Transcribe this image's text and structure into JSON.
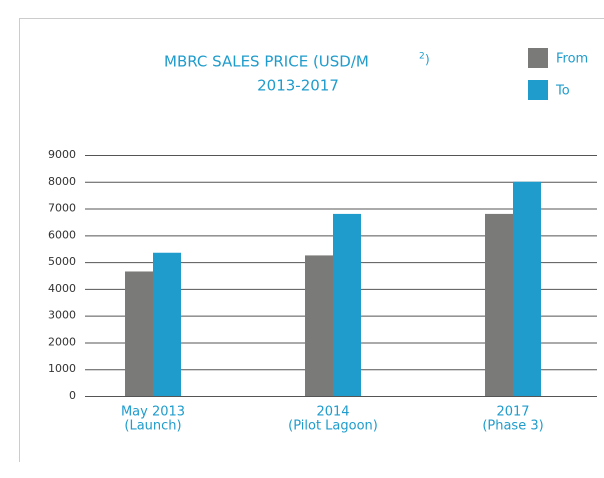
{
  "chart_data": {
    "type": "bar",
    "title": "MBRC SALES PRICE (USD/M",
    "title_superscript": "2",
    "title_end": ")",
    "subtitle": "2013-2017",
    "categories": [
      [
        "May 2013",
        "(Launch)"
      ],
      [
        "2014",
        "(Pilot Lagoon)"
      ],
      [
        "2017",
        "(Phase 3)"
      ]
    ],
    "series": [
      {
        "name": "From",
        "color": "#7a7a78",
        "values": [
          4650,
          5250,
          6800
        ]
      },
      {
        "name": "To",
        "color": "#1f9ccc",
        "values": [
          5350,
          6800,
          8000
        ]
      }
    ],
    "ylim": [
      0,
      9000
    ],
    "yticks": [
      0,
      1000,
      2000,
      3000,
      4000,
      5000,
      6000,
      7000,
      8000,
      9000
    ],
    "grid": true,
    "legend": "top-right"
  }
}
